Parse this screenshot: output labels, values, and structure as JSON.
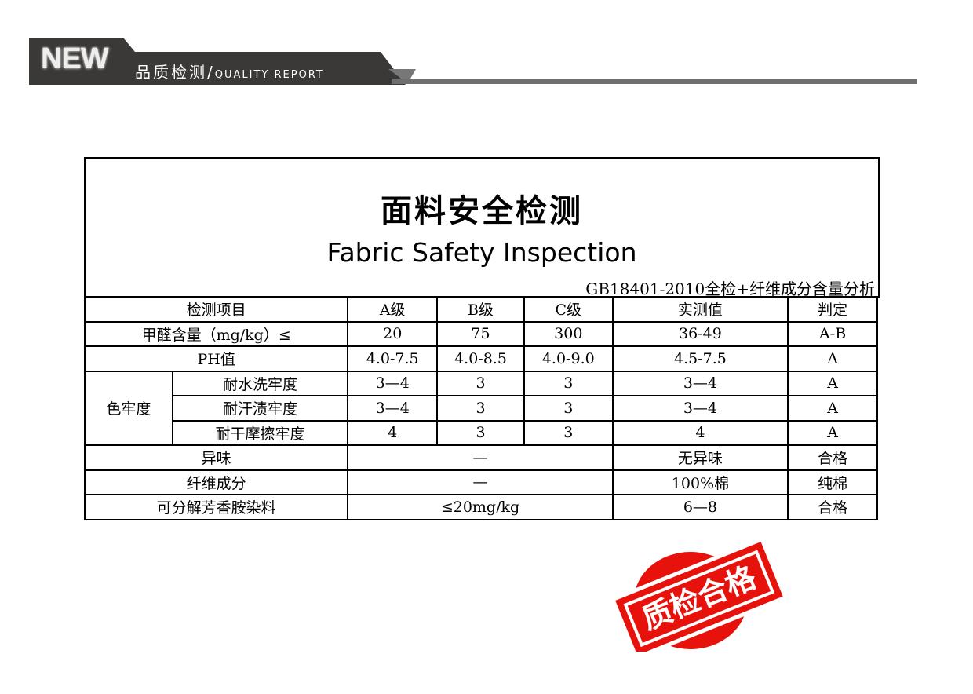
{
  "banner": {
    "new": "NEW",
    "title_cn": "品质检测/",
    "title_en": "QUALITY REPORT"
  },
  "report": {
    "title_cn": "面料安全检测",
    "title_en": "Fabric Safety Inspection",
    "standard": "GB18401-2010全检+纤维成分含量分析"
  },
  "table": {
    "headers": [
      "检测项目",
      "A级",
      "B级",
      "C级",
      "实测值",
      "判定"
    ],
    "rows": [
      {
        "item": "甲醛含量（mg/kg）≤",
        "a": "20",
        "b": "75",
        "c": "300",
        "measured": "36-49",
        "result": "A-B"
      },
      {
        "item": "PH值",
        "a": "4.0-7.5",
        "b": "4.0-8.5",
        "c": "4.0-9.0",
        "measured": "4.5-7.5",
        "result": "A"
      }
    ],
    "group": {
      "label": "色牢度",
      "rows": [
        {
          "item": "耐水洗牢度",
          "a": "3—4",
          "b": "3",
          "c": "3",
          "measured": "3—4",
          "result": "A"
        },
        {
          "item": "耐汗渍牢度",
          "a": "3—4",
          "b": "3",
          "c": "3",
          "measured": "3—4",
          "result": "A"
        },
        {
          "item": "耐干摩擦牢度",
          "a": "4",
          "b": "3",
          "c": "3",
          "measured": "4",
          "result": "A"
        }
      ]
    },
    "merged_rows": [
      {
        "item": "异味",
        "limit": "—",
        "measured": "无异味",
        "result": "合格"
      },
      {
        "item": "纤维成分",
        "limit": "—",
        "measured": "100%棉",
        "result": "纯棉"
      },
      {
        "item": "可分解芳香胺染料",
        "limit": "≤20mg/kg",
        "measured": "6—8",
        "result": "合格"
      }
    ]
  },
  "stamp": {
    "text": "质检合格",
    "color": "#e8120c"
  }
}
